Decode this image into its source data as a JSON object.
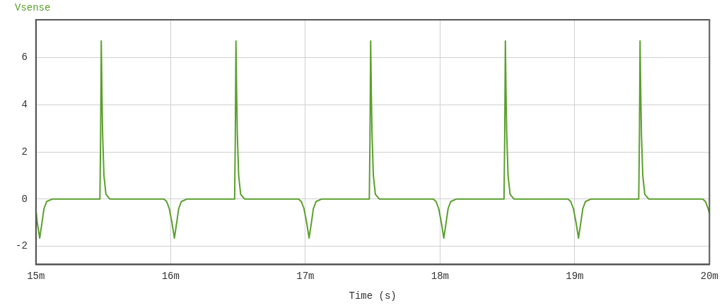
{
  "chart_data": {
    "type": "line",
    "xlabel": "Time (s)",
    "legend": "top left",
    "grid": true,
    "marker": "none",
    "line_style": "solid",
    "xlim": [
      15,
      20
    ],
    "xticks": [
      {
        "value": 15,
        "label": "15m"
      },
      {
        "value": 16,
        "label": "16m"
      },
      {
        "value": 17,
        "label": "17m"
      },
      {
        "value": 18,
        "label": "18m"
      },
      {
        "value": 19,
        "label": "19m"
      },
      {
        "value": 20,
        "label": "20m"
      }
    ],
    "ylim": [
      -2.77,
      7.6
    ],
    "yticks": [
      -2,
      0,
      2,
      4,
      6
    ],
    "series": [
      {
        "name": "Vsense",
        "color": "#5aa02c",
        "x": [
          15,
          15.01,
          15.028,
          15.045,
          15.06,
          15.08,
          15.12,
          15.475,
          15.48,
          15.485,
          15.49,
          15.495,
          15.505,
          15.52,
          15.55,
          15.95,
          15.97,
          15.99,
          16.01,
          16.028,
          16.045,
          16.06,
          16.08,
          16.12,
          16.475,
          16.48,
          16.485,
          16.49,
          16.495,
          16.505,
          16.52,
          16.55,
          16.95,
          16.97,
          16.99,
          17.01,
          17.028,
          17.045,
          17.06,
          17.08,
          17.12,
          17.475,
          17.48,
          17.485,
          17.49,
          17.495,
          17.505,
          17.52,
          17.55,
          17.95,
          17.97,
          17.99,
          18.01,
          18.028,
          18.045,
          18.06,
          18.08,
          18.12,
          18.475,
          18.48,
          18.485,
          18.49,
          18.495,
          18.505,
          18.52,
          18.55,
          18.95,
          18.97,
          18.99,
          19.01,
          19.028,
          19.045,
          19.06,
          19.08,
          19.12,
          19.475,
          19.48,
          19.485,
          19.49,
          19.495,
          19.505,
          19.52,
          19.55,
          19.95,
          19.97,
          19.99,
          20
        ],
        "values": [
          -0.4,
          -1.0,
          -1.65,
          -1.0,
          -0.4,
          -0.1,
          0,
          0,
          2.5,
          6.7,
          4.5,
          2.8,
          1.0,
          0.2,
          0,
          0,
          -0.1,
          -0.4,
          -1.0,
          -1.65,
          -1.0,
          -0.4,
          -0.1,
          0,
          0,
          2.5,
          6.7,
          4.5,
          2.8,
          1.0,
          0.2,
          0,
          0,
          -0.1,
          -0.4,
          -1.0,
          -1.65,
          -1.0,
          -0.4,
          -0.1,
          0,
          0,
          2.5,
          6.7,
          4.5,
          2.8,
          1.0,
          0.2,
          0,
          0,
          -0.1,
          -0.4,
          -1.0,
          -1.65,
          -1.0,
          -0.4,
          -0.1,
          0,
          0,
          2.5,
          6.7,
          4.5,
          2.8,
          1.0,
          0.2,
          0,
          0,
          -0.1,
          -0.4,
          -1.0,
          -1.65,
          -1.0,
          -0.4,
          -0.1,
          0,
          0,
          2.5,
          6.7,
          4.5,
          2.8,
          1.0,
          0.2,
          0,
          0,
          -0.1,
          -0.4,
          -0.6
        ]
      }
    ]
  }
}
